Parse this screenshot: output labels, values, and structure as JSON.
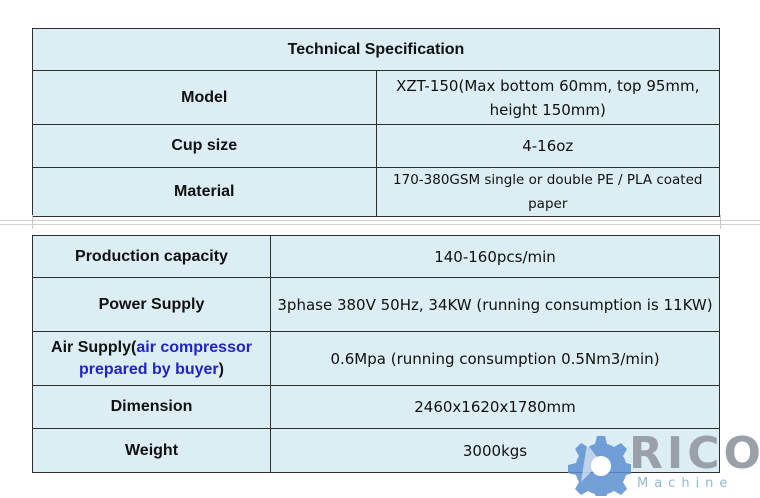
{
  "table1": {
    "header": "Technical Specification",
    "rows": [
      {
        "label": "Model",
        "value": "XZT-150(Max bottom 60mm, top 95mm, height 150mm)"
      },
      {
        "label": "Cup size",
        "value": "4-16oz"
      },
      {
        "label": "Material",
        "value": "170-380GSM single or double PE / PLA coated paper"
      }
    ]
  },
  "table2": {
    "rows": [
      {
        "label": "Production capacity",
        "value": "140-160pcs/min"
      },
      {
        "label": "Power Supply",
        "value": "3phase 380V 50Hz, 34KW (running consumption is 11KW)"
      },
      {
        "label_prefix": "Air Supply(",
        "label_highlight": "air compressor prepared by buyer",
        "label_suffix": ")",
        "value": "0.6Mpa (running consumption 0.5Nm3/min)"
      },
      {
        "label": "Dimension",
        "value": "2460x1620x1780mm"
      },
      {
        "label": "Weight",
        "value": "3000kgs"
      }
    ]
  },
  "logo": {
    "word": "RICO",
    "sub": "Machine",
    "colors": {
      "gear": "#5b8fcf",
      "word": "#9aa0a7",
      "sub": "#8fb8d8"
    }
  },
  "colors": {
    "cell_bg": "#dcedf3",
    "border": "#2f2f2f",
    "highlight_text": "#1f24c4"
  }
}
